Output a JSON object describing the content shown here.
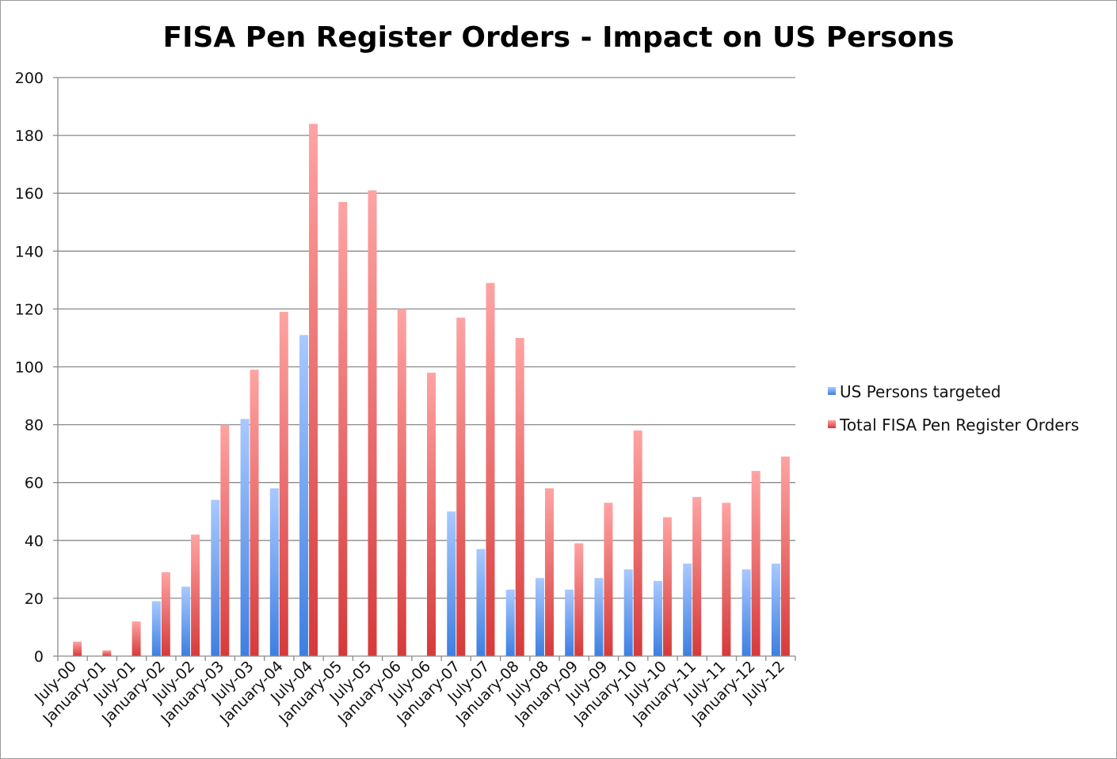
{
  "chart_data": {
    "type": "bar",
    "title": "FISA Pen Register Orders - Impact on US Persons",
    "xlabel": "",
    "ylabel": "",
    "ylim": [
      0,
      200
    ],
    "y_ticks": [
      0,
      20,
      40,
      60,
      80,
      100,
      120,
      140,
      160,
      180,
      200
    ],
    "grid": true,
    "legend_position": "right",
    "categories": [
      "July-00",
      "January-01",
      "July-01",
      "January-02",
      "July-02",
      "January-03",
      "July-03",
      "January-04",
      "July-04",
      "January-05",
      "July-05",
      "January-06",
      "July-06",
      "January-07",
      "July-07",
      "January-08",
      "July-08",
      "January-09",
      "July-09",
      "January-10",
      "July-10",
      "January-11",
      "July-11",
      "January-12",
      "July-12"
    ],
    "series": [
      {
        "name": "US Persons targeted",
        "color": "#5f9bf0",
        "values": [
          0,
          0,
          0,
          19,
          24,
          54,
          82,
          58,
          111,
          0,
          0,
          0,
          0,
          50,
          37,
          23,
          27,
          23,
          27,
          30,
          26,
          32,
          0,
          30,
          32
        ]
      },
      {
        "name": "Total FISA Pen Register Orders",
        "color": "#e25a5a",
        "values": [
          5,
          2,
          12,
          29,
          42,
          80,
          99,
          119,
          184,
          157,
          161,
          120,
          98,
          117,
          129,
          110,
          58,
          39,
          53,
          78,
          48,
          55,
          53,
          64,
          69
        ]
      }
    ]
  }
}
